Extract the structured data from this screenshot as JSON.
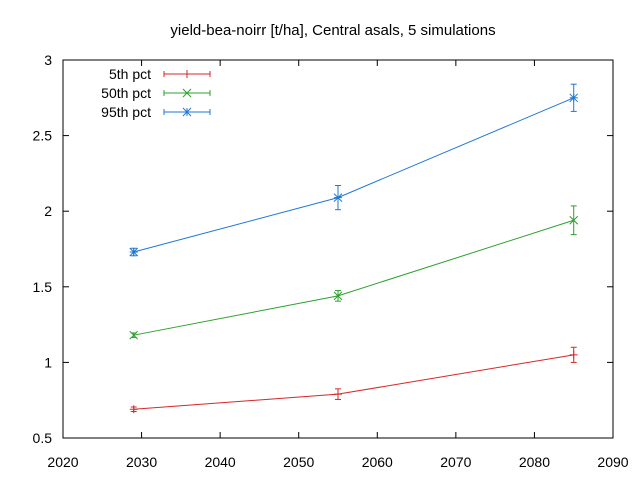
{
  "chart_data": {
    "type": "line",
    "title": "yield-bea-noirr [t/ha], Central asals, 5 simulations",
    "xlabel": "",
    "ylabel": "",
    "xlim": [
      2020,
      2090
    ],
    "ylim": [
      0.5,
      3
    ],
    "xticks": [
      2020,
      2030,
      2040,
      2050,
      2060,
      2070,
      2080,
      2090
    ],
    "yticks": [
      0.5,
      1,
      1.5,
      2,
      2.5,
      3
    ],
    "xtick_labels": [
      "2020",
      "2030",
      "2040",
      "2050",
      "2060",
      "2070",
      "2080",
      "2090"
    ],
    "ytick_labels": [
      "0.5",
      "1",
      "1.5",
      "2",
      "2.5",
      "3"
    ],
    "grid": false,
    "legend_position": "top-left",
    "series": [
      {
        "name": "5th pct",
        "color": "#d62728",
        "marker": "plus",
        "points": [
          {
            "x": 2029,
            "y": 0.69,
            "err": 0.015
          },
          {
            "x": 2055,
            "y": 0.79,
            "err": 0.035
          },
          {
            "x": 2085,
            "y": 1.05,
            "err": 0.05
          }
        ]
      },
      {
        "name": "50th pct",
        "color": "#2ca02c",
        "marker": "cross",
        "points": [
          {
            "x": 2029,
            "y": 1.18,
            "err": 0.015
          },
          {
            "x": 2055,
            "y": 1.44,
            "err": 0.035
          },
          {
            "x": 2085,
            "y": 1.94,
            "err": 0.095
          }
        ]
      },
      {
        "name": "95th pct",
        "color": "#1f77d4",
        "marker": "star",
        "points": [
          {
            "x": 2029,
            "y": 1.73,
            "err": 0.025
          },
          {
            "x": 2055,
            "y": 2.09,
            "err": 0.08
          },
          {
            "x": 2085,
            "y": 2.75,
            "err": 0.09
          }
        ]
      }
    ]
  }
}
